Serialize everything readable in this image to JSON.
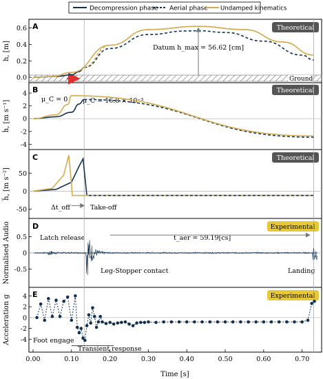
{
  "colors": {
    "dark": "#12304f",
    "gold": "#d4ac4e",
    "arrow": "#e03030",
    "grid": "#bbbbbb",
    "badge_dark": "#555555",
    "badge_gold": "#e6c93a"
  },
  "legend": [
    "Decompression phase",
    "Aerial phase",
    "Undamped kinematics"
  ],
  "xlabel": "Time [s]",
  "xticks": [
    "0.00",
    "0.10",
    "0.20",
    "0.30",
    "0.40",
    "0.50",
    "0.60",
    "0.70"
  ],
  "chart_data": [
    {
      "type": "line",
      "panel": "A",
      "badge": "Theoretical",
      "ylabel": "h, [m]",
      "yticks": [
        "0.0",
        "0.2",
        "0.4",
        "0.6"
      ],
      "xlim": [
        0,
        0.74
      ],
      "ylim": [
        -0.04,
        0.68
      ],
      "annotations": {
        "datum": "Datum h_max = 56.62 [cm]",
        "ground": "Ground"
      },
      "series": [
        {
          "name": "Decompression phase",
          "x": [
            0.0,
            0.06,
            0.1,
            0.12,
            0.133
          ],
          "y": [
            0.0,
            0.01,
            0.03,
            0.07,
            0.12
          ]
        },
        {
          "name": "Aerial phase",
          "x": [
            0.133,
            0.2,
            0.3,
            0.4,
            0.43,
            0.5,
            0.6,
            0.7,
            0.73
          ],
          "y": [
            0.12,
            0.35,
            0.52,
            0.564,
            0.566,
            0.545,
            0.44,
            0.27,
            0.21
          ]
        },
        {
          "name": "Undamped kinematics",
          "x": [
            0.0,
            0.05,
            0.1,
            0.2,
            0.3,
            0.43,
            0.55,
            0.65,
            0.73
          ],
          "y": [
            0.0,
            0.01,
            0.06,
            0.39,
            0.58,
            0.62,
            0.58,
            0.43,
            0.27
          ]
        }
      ]
    },
    {
      "type": "line",
      "panel": "B",
      "badge": "Theoretical",
      "ylabel": "ḣ, [m s⁻¹]",
      "yticks": [
        "-4",
        "-2",
        "0",
        "2",
        "4"
      ],
      "xlim": [
        0,
        0.74
      ],
      "ylim": [
        -4.5,
        5.3
      ],
      "annotations": {
        "mu0": "μ_C = 0",
        "mu1": "μ_C = 16.8 × 10⁻³"
      },
      "series": [
        {
          "name": "Decompression phase",
          "x": [
            0.0,
            0.06,
            0.1,
            0.12,
            0.133
          ],
          "y": [
            0.0,
            0.3,
            1.0,
            2.3,
            3.0
          ]
        },
        {
          "name": "Aerial phase",
          "x": [
            0.133,
            0.73
          ],
          "y": [
            3.0,
            -2.9
          ]
        },
        {
          "name": "Undamped kinematics",
          "x": [
            0.0,
            0.06,
            0.09,
            0.1,
            0.73
          ],
          "y": [
            0.0,
            0.6,
            2.2,
            3.6,
            -2.7
          ]
        }
      ]
    },
    {
      "type": "line",
      "panel": "C",
      "badge": "Theoretical",
      "ylabel": "ḧ, [m s⁻²]",
      "yticks": [
        "-50",
        "0",
        "50"
      ],
      "xlim": [
        0,
        0.74
      ],
      "ylim": [
        -70,
        110
      ],
      "annotations": {
        "dt": "Δt_off",
        "takeoff": "Take-off"
      },
      "series": [
        {
          "name": "Decompression phase",
          "x": [
            0.0,
            0.06,
            0.1,
            0.12,
            0.13,
            0.135,
            0.14,
            0.73
          ],
          "y": [
            0,
            5,
            25,
            70,
            90,
            40,
            -12,
            -12
          ]
        },
        {
          "name": "Undamped kinematics",
          "x": [
            0.0,
            0.05,
            0.08,
            0.093,
            0.1,
            0.102,
            0.73
          ],
          "y": [
            0,
            8,
            45,
            100,
            20,
            -12,
            -12
          ]
        }
      ]
    },
    {
      "type": "line",
      "panel": "D",
      "badge": "Experimental",
      "ylabel": "Normalised Audio",
      "yticks": [
        "-0.5",
        "0",
        "0.5"
      ],
      "xlim": [
        0,
        0.74
      ],
      "ylim": [
        -1.0,
        1.0
      ],
      "annotations": {
        "latch": "Latch release",
        "taer": "t_aer = 59.19[cs]",
        "contact": "Leg-Stopper contact",
        "landing": "Landing"
      },
      "series": [
        {
          "name": "Audio",
          "x": [
            0.04,
            0.14,
            0.73
          ],
          "y": [
            0.1,
            0.8,
            0.4
          ]
        }
      ]
    },
    {
      "type": "scatter",
      "panel": "E",
      "badge": "Experimental",
      "ylabel": "Acceleration g",
      "yticks": [
        "-4",
        "-2",
        "0",
        "2",
        "4"
      ],
      "xlim": [
        0,
        0.74
      ],
      "ylim": [
        -6,
        5.2
      ],
      "annotations": {
        "foot": "Foot engage",
        "transient": "Transient response"
      },
      "series": [
        {
          "name": "Acceleration",
          "x": [
            0.01,
            0.02,
            0.03,
            0.04,
            0.05,
            0.06,
            0.07,
            0.08,
            0.09,
            0.1,
            0.11,
            0.115,
            0.12,
            0.125,
            0.13,
            0.135,
            0.14,
            0.145,
            0.15,
            0.155,
            0.16,
            0.165,
            0.17,
            0.175,
            0.18,
            0.19,
            0.2,
            0.21,
            0.22,
            0.23,
            0.24,
            0.25,
            0.26,
            0.27,
            0.28,
            0.29,
            0.3,
            0.32,
            0.34,
            0.36,
            0.38,
            0.4,
            0.42,
            0.44,
            0.46,
            0.48,
            0.5,
            0.52,
            0.54,
            0.56,
            0.58,
            0.6,
            0.62,
            0.64,
            0.66,
            0.68,
            0.7,
            0.715,
            0.725,
            0.732
          ],
          "y": [
            0.0,
            2.5,
            -0.5,
            3.5,
            0.2,
            3.2,
            0.2,
            3.0,
            3.8,
            -0.5,
            4.0,
            -1.8,
            -2.8,
            -2.0,
            -3.8,
            -4.2,
            -1.5,
            0.5,
            -1.0,
            1.8,
            0.2,
            -1.8,
            -0.8,
            0.2,
            -0.8,
            -1.1,
            -0.9,
            -1.2,
            -1.0,
            -0.9,
            -0.8,
            -1.2,
            -1.5,
            -1.0,
            -0.9,
            -0.9,
            -0.8,
            -0.9,
            -0.8,
            -0.8,
            -0.8,
            -0.8,
            -0.8,
            -0.8,
            -0.8,
            -0.8,
            -0.8,
            -0.8,
            -0.8,
            -0.8,
            -0.8,
            -0.8,
            -0.8,
            -0.8,
            -0.8,
            -0.8,
            -0.8,
            -0.5,
            2.6,
            3.0
          ]
        }
      ]
    }
  ]
}
